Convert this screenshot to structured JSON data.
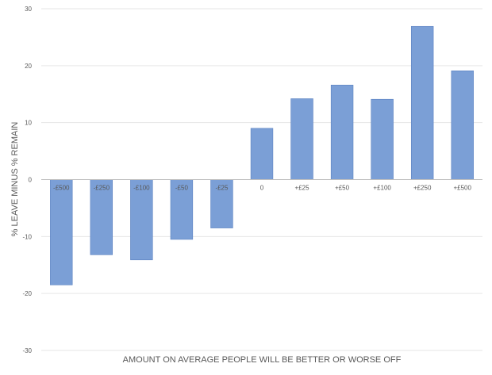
{
  "chart_data": {
    "type": "bar",
    "title": "",
    "xlabel": "AMOUNT ON AVERAGE PEOPLE WILL BE BETTER OR WORSE OFF",
    "ylabel": "% LEAVE MINUS % REMAIN",
    "ylim": [
      -30,
      30
    ],
    "yticks": [
      30,
      20,
      10,
      0,
      -10,
      -20,
      -30
    ],
    "ytick_labels": [
      "30",
      "20",
      "10",
      "0",
      "-10",
      "-20",
      "-30"
    ],
    "categories": [
      "-£500",
      "-£250",
      "-£100",
      "-£50",
      "-£25",
      "0",
      "+£25",
      "+£50",
      "+£100",
      "+£250",
      "+£500"
    ],
    "values": [
      -18.5,
      -13.2,
      -14.1,
      -10.5,
      -8.5,
      9.0,
      14.2,
      16.6,
      14.1,
      26.9,
      19.1
    ],
    "bar_color": "#7b9fd6",
    "bar_border_color": "#5a80c0",
    "grid": true,
    "gridline_color": "#e6e6e6",
    "legend": "none"
  }
}
